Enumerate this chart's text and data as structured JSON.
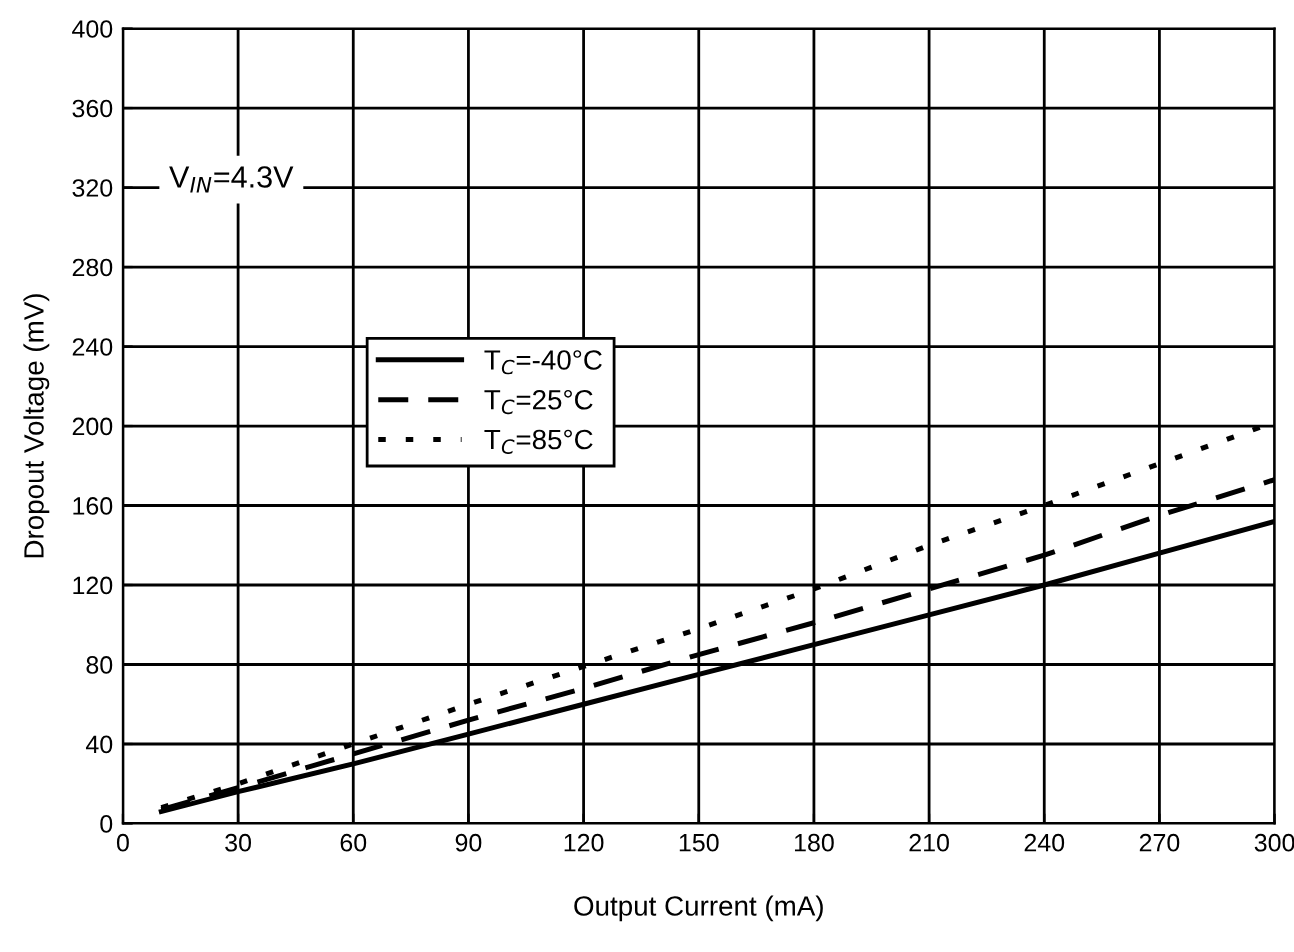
{
  "chart_data": {
    "type": "line",
    "xlabel": "Output Current (mA)",
    "ylabel": "Dropout Voltage (mV)",
    "annotations": [
      "V$_{IN}$=4.3V"
    ],
    "x": [
      10,
      30,
      60,
      90,
      120,
      150,
      180,
      210,
      240,
      270,
      300
    ],
    "series": [
      {
        "name": "T$_{C}$=-40°C",
        "color": "#000000",
        "line_style": "solid",
        "values": [
          6,
          16,
          30,
          45,
          60,
          75,
          90,
          105,
          120,
          136,
          152
        ]
      },
      {
        "name": "T$_{C}$=25°C",
        "color": "#000000",
        "line_style": "dashed",
        "values": [
          7,
          18,
          35,
          52,
          68,
          85,
          101,
          118,
          135,
          155,
          173
        ]
      },
      {
        "name": "T$_{C}$=85°C",
        "color": "#000000",
        "line_style": "dotted",
        "values": [
          8,
          20,
          40,
          60,
          79,
          98,
          118,
          140,
          160,
          181,
          202
        ]
      }
    ],
    "xlim": [
      0,
      300
    ],
    "xticks": [
      0,
      30,
      60,
      90,
      120,
      150,
      180,
      210,
      240,
      270,
      300
    ],
    "ylim": [
      0,
      400
    ],
    "yticks": [
      0,
      40,
      80,
      120,
      160,
      200,
      240,
      280,
      320,
      360,
      400
    ],
    "grid": true,
    "legend": "center left",
    "marker": "none"
  }
}
